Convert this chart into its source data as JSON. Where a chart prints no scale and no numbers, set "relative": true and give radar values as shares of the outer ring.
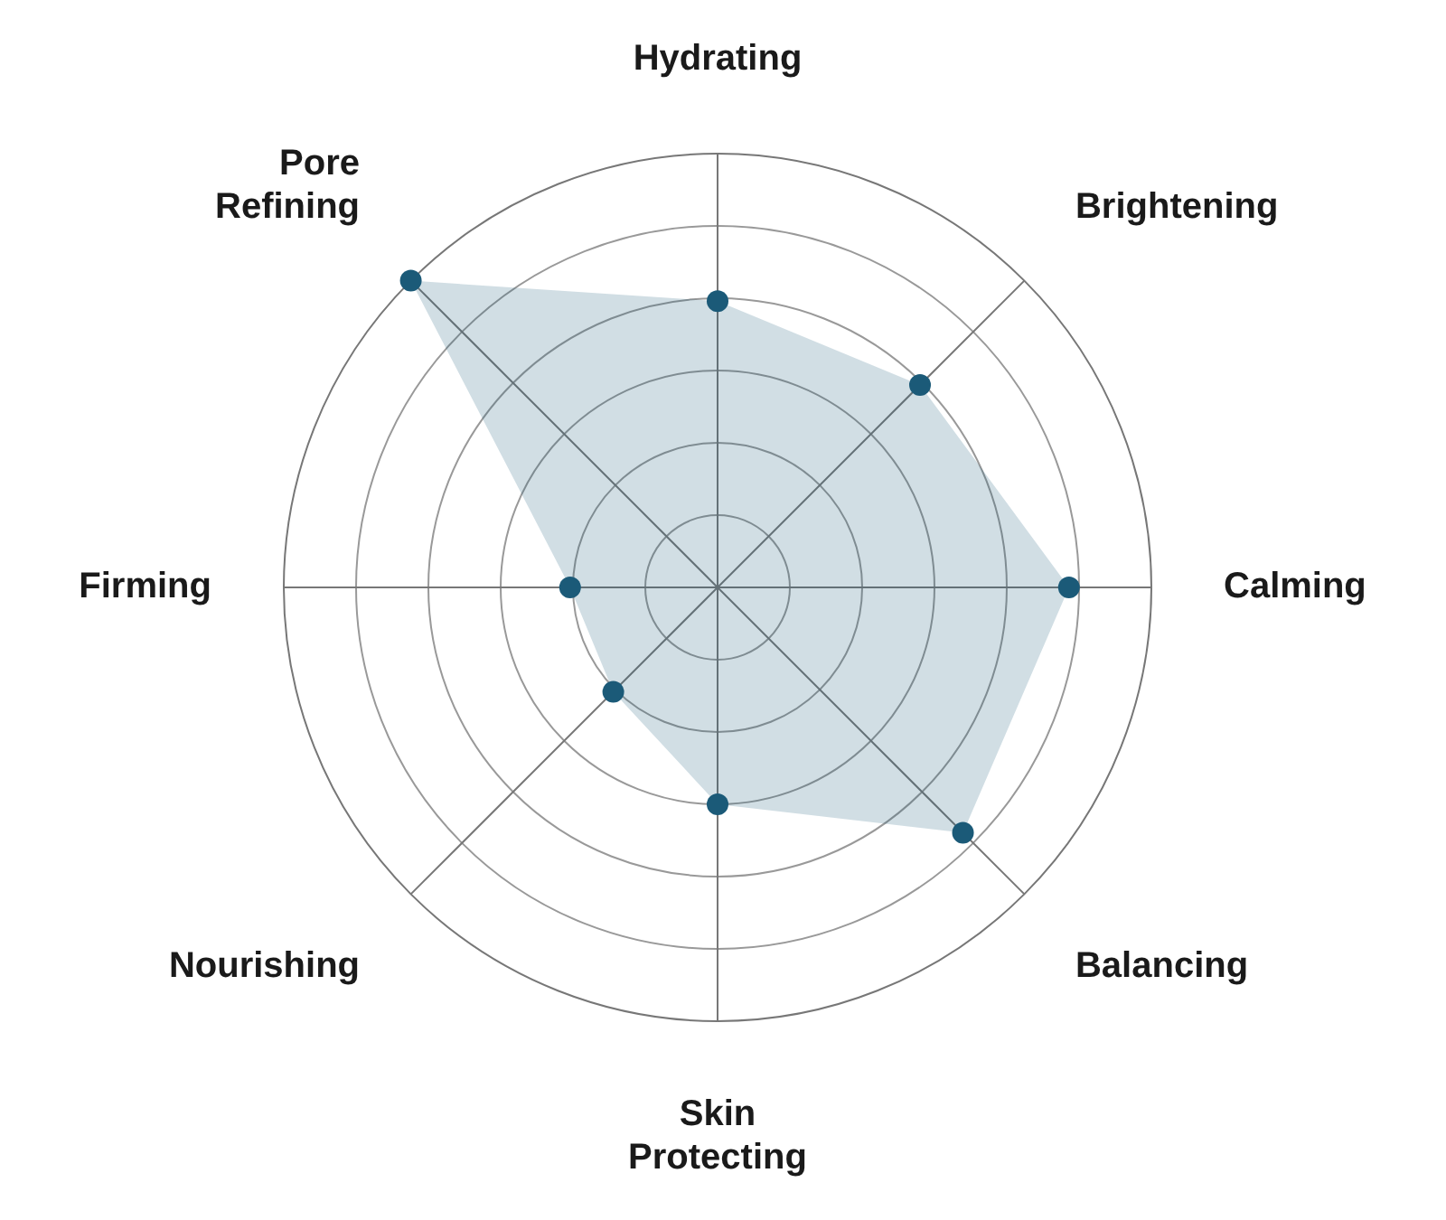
{
  "chart_data": {
    "type": "radar",
    "relative": true,
    "grid": true,
    "marker": "circle",
    "legend": false,
    "categories": [
      "Hydrating",
      "Brightening",
      "Calming",
      "Balancing",
      "Skin Protecting",
      "Nourishing",
      "Firming",
      "Pore Refining"
    ],
    "series": [
      {
        "color": "#1b5a78",
        "values": [
          0.66,
          0.66,
          0.81,
          0.8,
          0.5,
          0.34,
          0.34,
          1
        ]
      }
    ]
  }
}
